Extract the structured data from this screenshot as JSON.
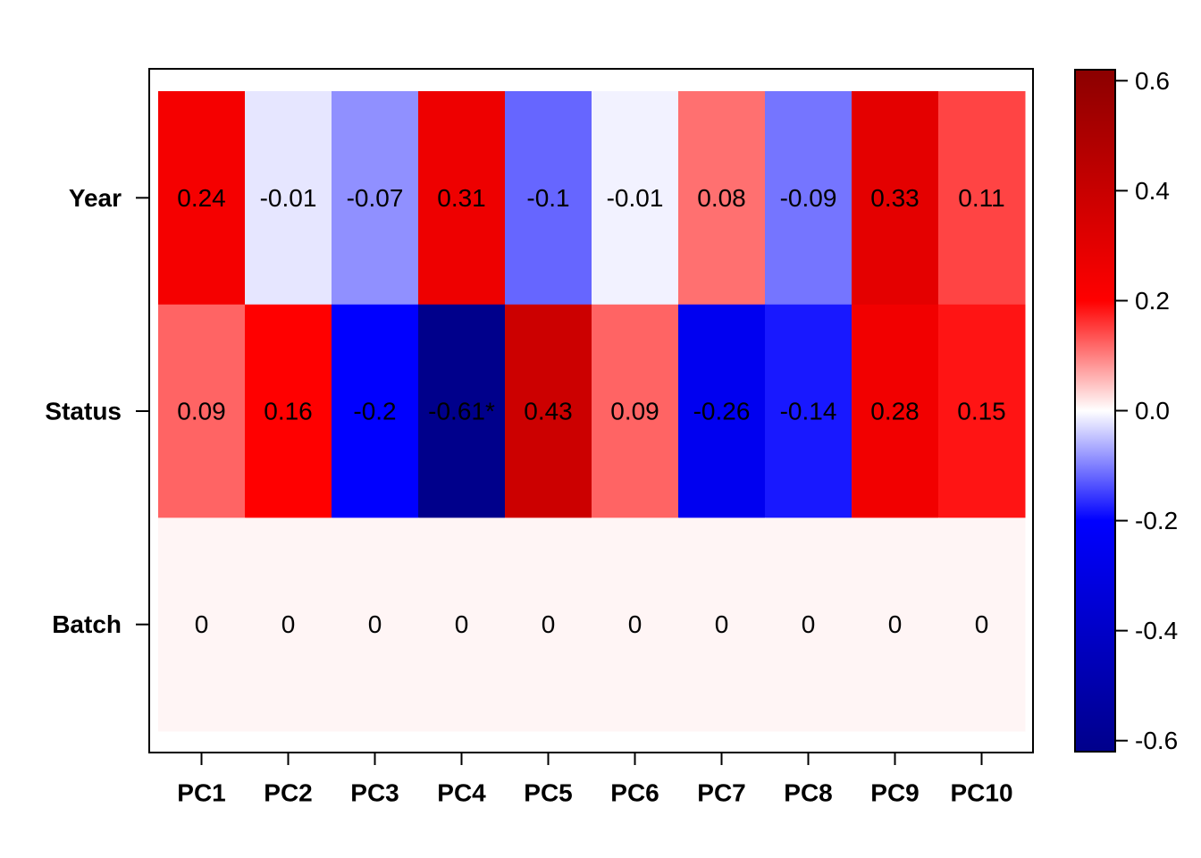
{
  "chart_data": {
    "type": "heatmap",
    "title": "",
    "xlabel": "",
    "ylabel": "",
    "columns": [
      "PC1",
      "PC2",
      "PC3",
      "PC4",
      "PC5",
      "PC6",
      "PC7",
      "PC8",
      "PC9",
      "PC10"
    ],
    "rows": [
      "Year",
      "Status",
      "Batch"
    ],
    "values": [
      [
        0.24,
        -0.01,
        -0.07,
        0.31,
        -0.1,
        -0.01,
        0.08,
        -0.09,
        0.33,
        0.11
      ],
      [
        0.09,
        0.16,
        -0.2,
        -0.61,
        0.43,
        0.09,
        -0.26,
        -0.14,
        0.28,
        0.15
      ],
      [
        0,
        0,
        0,
        0,
        0,
        0,
        0,
        0,
        0,
        0
      ]
    ],
    "cell_labels": [
      [
        "0.24",
        "-0.01",
        "-0.07",
        "0.31",
        "-0.1",
        "-0.01",
        "0.08",
        "-0.09",
        "0.33",
        "0.11"
      ],
      [
        "0.09",
        "0.16",
        "-0.2",
        "-0.61*",
        "0.43",
        "0.09",
        "-0.26",
        "-0.14",
        "0.28",
        "0.15"
      ],
      [
        "0",
        "0",
        "0",
        "0",
        "0",
        "0",
        "0",
        "0",
        "0",
        "0"
      ]
    ],
    "cell_colors": [
      [
        "#F50000",
        "#E6E6FF",
        "#9090FF",
        "#EE0000",
        "#6666FF",
        "#F2F2FF",
        "#FF7070",
        "#7575FF",
        "#E40000",
        "#FF4444"
      ],
      [
        "#FF6464",
        "#FF0000",
        "#0000FF",
        "#00008B",
        "#CC0000",
        "#FF6464",
        "#0000F0",
        "#1818FF",
        "#F20000",
        "#FF1414"
      ],
      [
        "#FFF5F5",
        "#FFF5F5",
        "#FFF5F5",
        "#FFF5F5",
        "#FFF5F5",
        "#FFF5F5",
        "#FFF5F5",
        "#FFF5F5",
        "#FFF5F5",
        "#FFF5F5"
      ]
    ],
    "colorbar": {
      "range": [
        -0.62,
        0.62
      ],
      "ticks": [
        0.6,
        0.4,
        0.2,
        0.0,
        -0.2,
        -0.4,
        -0.6
      ],
      "tick_labels": [
        "0.6",
        "0.4",
        "0.2",
        "0.0",
        "-0.2",
        "-0.4",
        "-0.6"
      ],
      "color_stops": [
        {
          "value": -0.62,
          "color": "#00008B"
        },
        {
          "value": -0.2,
          "color": "#0000FF"
        },
        {
          "value": 0.0,
          "color": "#FFFFFF"
        },
        {
          "value": 0.2,
          "color": "#FF0000"
        },
        {
          "value": 0.62,
          "color": "#8B0000"
        }
      ]
    }
  }
}
